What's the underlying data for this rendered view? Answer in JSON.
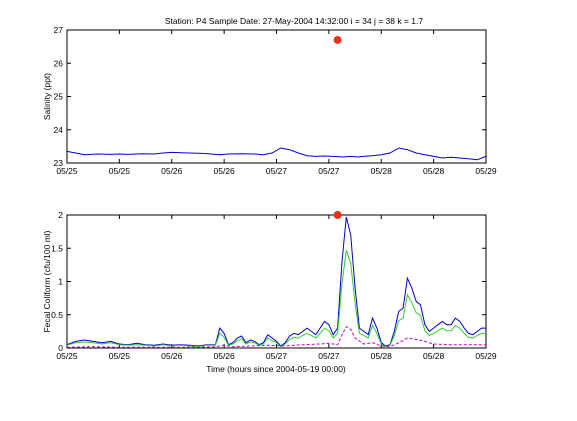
{
  "figure": {
    "title": "Station: P4  Sample Date: 27-May-2004 14:32:00   i = 34 j = 38 k = 1.7",
    "xlabel": "Time (hours since 2004-05-19 00:00)",
    "background": "#ffffff"
  },
  "chart_data": [
    {
      "type": "line",
      "name": "salinity",
      "xlabel": "",
      "ylabel": "Salinity (ppt)",
      "xlim": [
        144,
        240
      ],
      "ylim": [
        23,
        27
      ],
      "xticks": [
        144,
        156,
        168,
        180,
        192,
        204,
        216,
        228,
        240
      ],
      "xtick_labels": [
        "05/25",
        "05/25",
        "05/26",
        "05/26",
        "05/27",
        "05/27",
        "05/28",
        "05/28",
        "05/29"
      ],
      "yticks": [
        23,
        24,
        25,
        26,
        27
      ],
      "ytick_labels": [
        "23",
        "24",
        "25",
        "26",
        "27"
      ],
      "grid": false,
      "series": [
        {
          "color": "#0000cc",
          "style": "solid",
          "x": [
            144,
            146,
            148,
            151,
            154,
            156,
            158,
            161,
            164,
            166,
            168,
            170,
            172,
            175,
            177,
            179,
            181,
            184,
            187,
            189,
            191,
            193,
            195,
            197,
            199,
            201,
            203,
            205,
            207,
            209,
            210.5,
            212,
            214,
            216,
            218,
            220,
            222,
            224,
            226,
            228,
            230,
            232,
            234,
            236,
            238,
            240
          ],
          "y": [
            23.35,
            23.3,
            23.25,
            23.27,
            23.26,
            23.27,
            23.26,
            23.28,
            23.27,
            23.3,
            23.32,
            23.31,
            23.3,
            23.29,
            23.27,
            23.25,
            23.27,
            23.28,
            23.27,
            23.25,
            23.3,
            23.45,
            23.4,
            23.3,
            23.22,
            23.2,
            23.21,
            23.2,
            23.18,
            23.2,
            23.18,
            23.2,
            23.22,
            23.25,
            23.3,
            23.45,
            23.4,
            23.3,
            23.25,
            23.2,
            23.15,
            23.17,
            23.15,
            23.13,
            23.1,
            23.2
          ]
        }
      ],
      "observation": {
        "x": 206,
        "y": 26.7,
        "color": "#e8321e"
      }
    },
    {
      "type": "line",
      "name": "fecal-coliform",
      "xlabel": "Time (hours since 2004-05-19 00:00)",
      "ylabel": "Fecal Coliform (cfu/100 ml)",
      "xlim": [
        144,
        240
      ],
      "ylim": [
        0,
        2
      ],
      "xticks": [
        144,
        156,
        168,
        180,
        192,
        204,
        216,
        228,
        240
      ],
      "xtick_labels": [
        "05/25",
        "05/25",
        "05/26",
        "05/26",
        "05/27",
        "05/27",
        "05/28",
        "05/28",
        "05/29"
      ],
      "yticks": [
        0,
        0.5,
        1,
        1.5,
        2
      ],
      "ytick_labels": [
        "0",
        "0.5",
        "1",
        "1.5",
        "2"
      ],
      "grid": false,
      "series": [
        {
          "color": "#0000cc",
          "style": "solid",
          "x": [
            144,
            146,
            148,
            150,
            152,
            154,
            156,
            158,
            160,
            162,
            164,
            166,
            168,
            170,
            172,
            174,
            176,
            178,
            179,
            180,
            181,
            182,
            183,
            184,
            185,
            186,
            187,
            188,
            189,
            190,
            191,
            192,
            193,
            194,
            195,
            196,
            197,
            198,
            199,
            200,
            201,
            202,
            203,
            204,
            205,
            206,
            207,
            208,
            209,
            210,
            211,
            212,
            213,
            214,
            215,
            216,
            217,
            218,
            219,
            220,
            221,
            222,
            223,
            224,
            225,
            226,
            227,
            228,
            229,
            230,
            231,
            232,
            233,
            234,
            235,
            236,
            237,
            238,
            239,
            240
          ],
          "y": [
            0.05,
            0.1,
            0.12,
            0.1,
            0.08,
            0.1,
            0.06,
            0.05,
            0.07,
            0.05,
            0.04,
            0.06,
            0.04,
            0.05,
            0.04,
            0.03,
            0.05,
            0.05,
            0.3,
            0.22,
            0.05,
            0.08,
            0.15,
            0.18,
            0.08,
            0.12,
            0.1,
            0.05,
            0.08,
            0.2,
            0.15,
            0.1,
            0.03,
            0.08,
            0.18,
            0.22,
            0.2,
            0.25,
            0.3,
            0.25,
            0.2,
            0.3,
            0.4,
            0.35,
            0.2,
            0.3,
            1.3,
            1.97,
            1.7,
            0.9,
            0.3,
            0.25,
            0.2,
            0.45,
            0.3,
            0.08,
            0.03,
            0.05,
            0.25,
            0.55,
            0.6,
            1.05,
            0.9,
            0.7,
            0.65,
            0.35,
            0.25,
            0.3,
            0.35,
            0.4,
            0.35,
            0.35,
            0.45,
            0.4,
            0.3,
            0.22,
            0.2,
            0.25,
            0.3,
            0.3
          ]
        },
        {
          "color": "#33cc33",
          "style": "solid",
          "x": [
            144,
            146,
            148,
            150,
            152,
            154,
            156,
            158,
            160,
            162,
            164,
            166,
            168,
            170,
            172,
            174,
            176,
            178,
            179,
            180,
            181,
            182,
            183,
            184,
            185,
            186,
            187,
            188,
            189,
            190,
            191,
            192,
            193,
            194,
            195,
            196,
            197,
            198,
            199,
            200,
            201,
            202,
            203,
            204,
            205,
            206,
            207,
            208,
            209,
            210,
            211,
            212,
            213,
            214,
            215,
            216,
            217,
            218,
            219,
            220,
            221,
            222,
            223,
            224,
            225,
            226,
            227,
            228,
            229,
            230,
            231,
            232,
            233,
            234,
            235,
            236,
            237,
            238,
            239,
            240
          ],
          "y": [
            0.04,
            0.08,
            0.09,
            0.08,
            0.06,
            0.08,
            0.05,
            0.04,
            0.05,
            0.04,
            0.03,
            0.05,
            0.03,
            0.04,
            0.03,
            0.02,
            0.04,
            0.04,
            0.22,
            0.16,
            0.04,
            0.06,
            0.11,
            0.14,
            0.06,
            0.09,
            0.08,
            0.04,
            0.06,
            0.15,
            0.11,
            0.08,
            0.02,
            0.06,
            0.13,
            0.16,
            0.15,
            0.19,
            0.22,
            0.19,
            0.15,
            0.22,
            0.3,
            0.26,
            0.15,
            0.22,
            0.97,
            1.47,
            1.27,
            0.67,
            0.22,
            0.19,
            0.15,
            0.34,
            0.22,
            0.06,
            0.02,
            0.04,
            0.19,
            0.41,
            0.45,
            0.8,
            0.68,
            0.53,
            0.49,
            0.26,
            0.19,
            0.22,
            0.26,
            0.3,
            0.26,
            0.26,
            0.34,
            0.3,
            0.22,
            0.16,
            0.15,
            0.19,
            0.22,
            0.22
          ]
        },
        {
          "color": "#cc00cc",
          "style": "dashed",
          "x": [
            144,
            150,
            156,
            162,
            168,
            174,
            178,
            180,
            182,
            186,
            190,
            194,
            198,
            202,
            204,
            206,
            207,
            208,
            209,
            210,
            212,
            214,
            216,
            218,
            220,
            222,
            224,
            226,
            228,
            232,
            236,
            240
          ],
          "y": [
            0.01,
            0.02,
            0.01,
            0.01,
            0.01,
            0.01,
            0.02,
            0.04,
            0.02,
            0.03,
            0.04,
            0.03,
            0.05,
            0.06,
            0.07,
            0.05,
            0.2,
            0.32,
            0.28,
            0.15,
            0.06,
            0.08,
            0.03,
            0.02,
            0.08,
            0.15,
            0.13,
            0.1,
            0.06,
            0.05,
            0.05,
            0.05
          ]
        }
      ],
      "observation": {
        "x": 206,
        "y": 2.0,
        "color": "#e8321e"
      }
    }
  ]
}
